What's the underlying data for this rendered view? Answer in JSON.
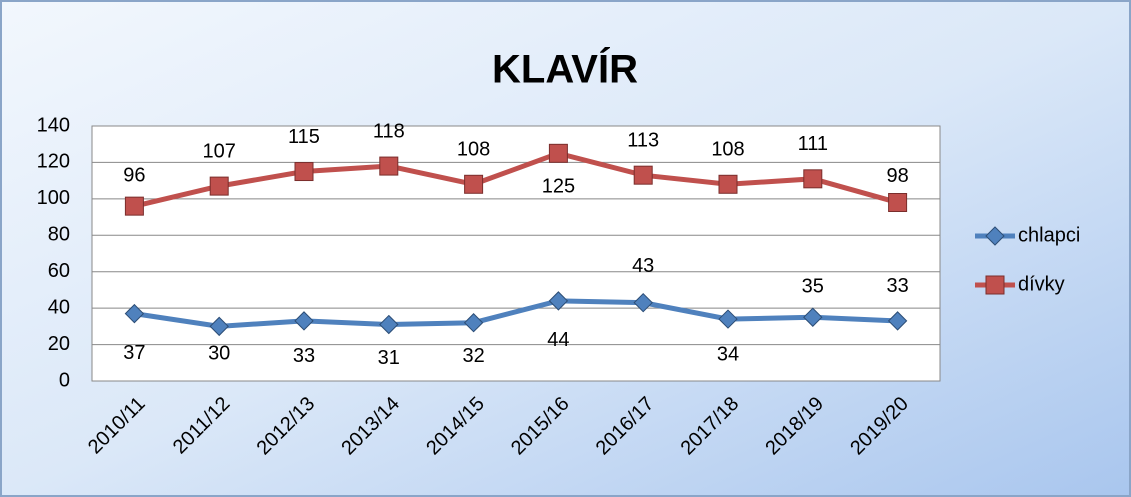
{
  "chart_data": {
    "type": "line",
    "title": "KLAVÍR",
    "categories": [
      "2010/11",
      "2011/12",
      "2012/13",
      "2013/14",
      "2014/15",
      "2015/16",
      "2016/17",
      "2017/18",
      "2018/19",
      "2019/20"
    ],
    "series": [
      {
        "name": "chlapci",
        "color": "#4f81bd",
        "values": [
          37,
          30,
          33,
          31,
          32,
          44,
          43,
          34,
          35,
          33
        ]
      },
      {
        "name": "dívky",
        "color": "#c0504d",
        "values": [
          96,
          107,
          115,
          118,
          108,
          125,
          113,
          108,
          111,
          98
        ]
      }
    ],
    "ylim": [
      0,
      140
    ],
    "yticks": [
      0,
      20,
      40,
      60,
      80,
      100,
      120,
      140
    ],
    "grid": true,
    "legend": "right"
  }
}
